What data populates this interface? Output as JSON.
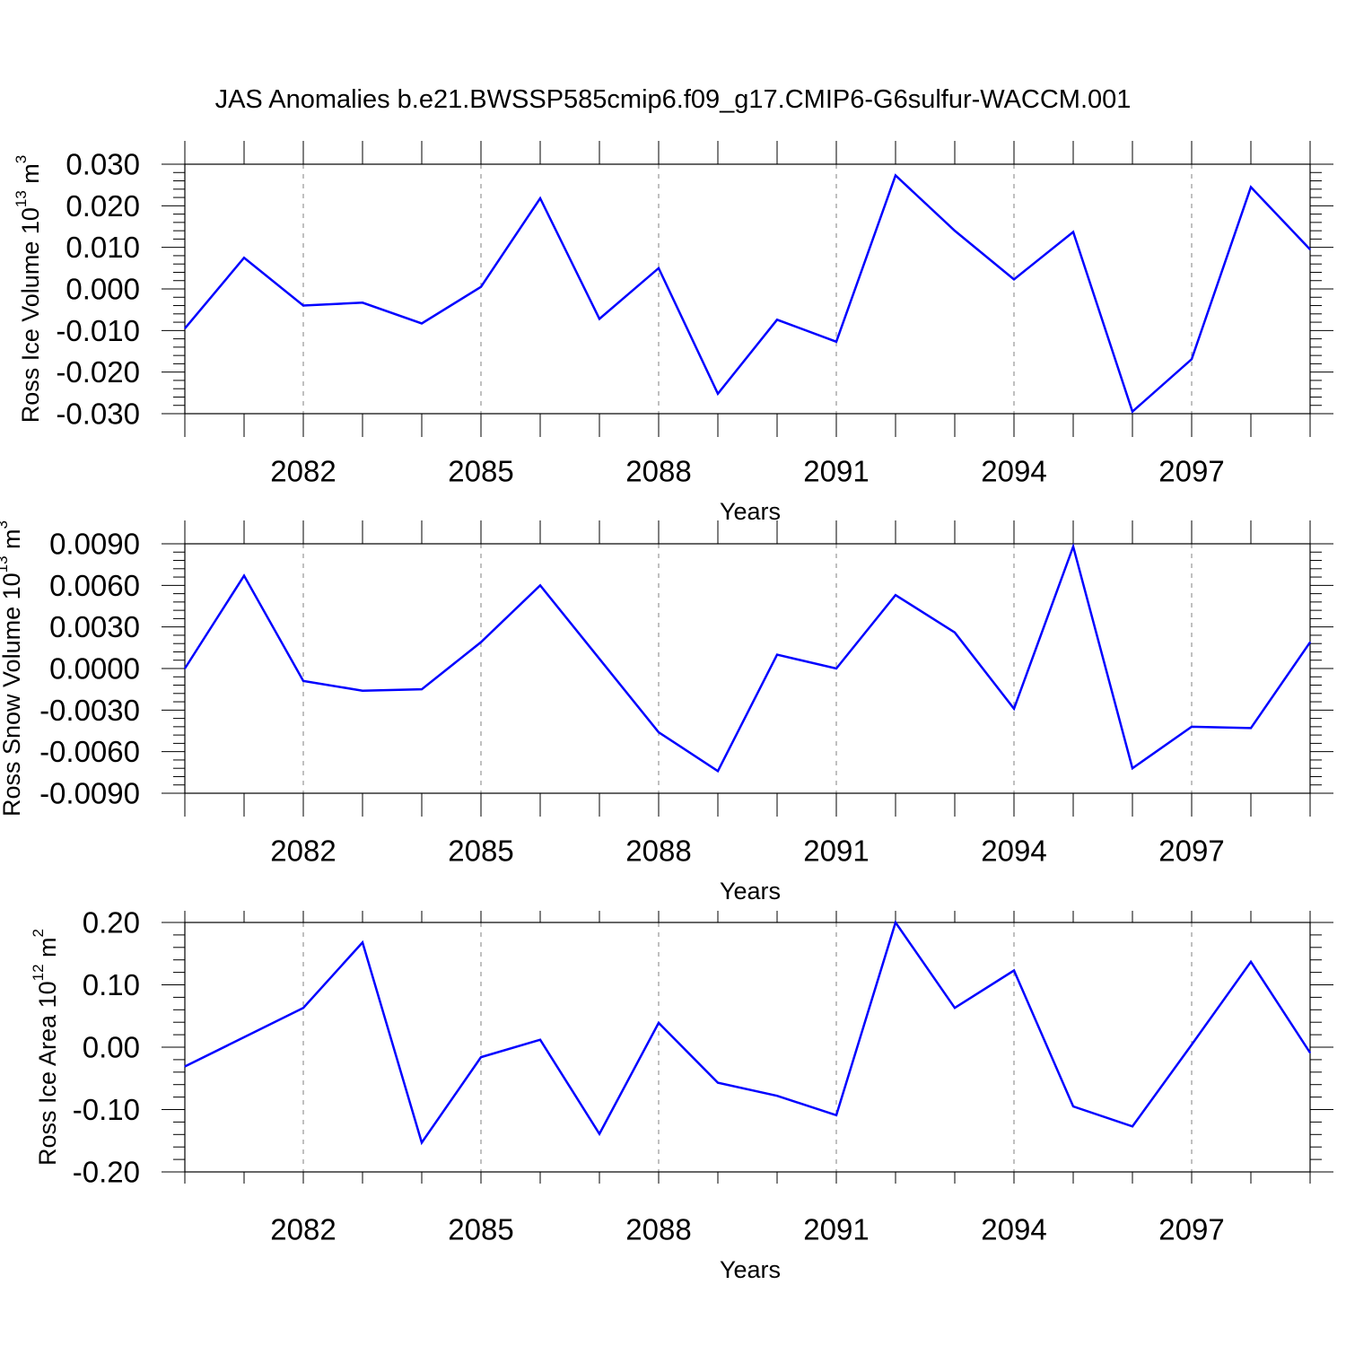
{
  "title": "JAS Anomalies b.e21.BWSSP585cmip6.f09_g17.CMIP6-G6sulfur-WACCM.001",
  "colors": {
    "line": "#0000ff",
    "axes": "#000000",
    "grid": "#808080"
  },
  "chart_data": [
    {
      "type": "line",
      "ylabel": {
        "text": "Ross Ice Volume 10",
        "exponent": "13",
        "unit": " m",
        "unit_exponent": "3"
      },
      "xlabel": "Years",
      "xlim": [
        2080,
        2099
      ],
      "ylim": [
        -0.03,
        0.03
      ],
      "x_ticks": [
        "2082",
        "2085",
        "2088",
        "2091",
        "2094",
        "2097"
      ],
      "y_ticks": [
        "-0.030",
        "-0.020",
        "-0.010",
        "0.000",
        "0.010",
        "0.020",
        "0.030"
      ],
      "grid": "x dashed",
      "series": [
        {
          "x": [
            2080,
            2081,
            2082,
            2083,
            2084,
            2085,
            2086,
            2087,
            2088,
            2089,
            2090,
            2091,
            2092,
            2093,
            2094,
            2095,
            2096,
            2097,
            2098,
            2099
          ],
          "values": [
            -0.0095,
            0.0075,
            -0.004,
            -0.0033,
            -0.0083,
            0.0005,
            0.0218,
            -0.0072,
            0.005,
            -0.0252,
            -0.0074,
            -0.0127,
            0.0273,
            0.014,
            0.0023,
            0.0137,
            -0.0295,
            -0.0169,
            0.0245,
            0.0095
          ]
        }
      ]
    },
    {
      "type": "line",
      "ylabel": {
        "text": "Ross Snow Volume 10",
        "exponent": "13",
        "unit": " m",
        "unit_exponent": "3"
      },
      "xlabel": "Years",
      "xlim": [
        2080,
        2099
      ],
      "ylim": [
        -0.009,
        0.009
      ],
      "x_ticks": [
        "2082",
        "2085",
        "2088",
        "2091",
        "2094",
        "2097"
      ],
      "y_ticks": [
        "-0.0090",
        "-0.0060",
        "-0.0030",
        "0.0000",
        "0.0030",
        "0.0060",
        "0.0090"
      ],
      "grid": "x dashed",
      "series": [
        {
          "x": [
            2080,
            2081,
            2082,
            2083,
            2084,
            2085,
            2086,
            2087,
            2088,
            2089,
            2090,
            2091,
            2092,
            2093,
            2094,
            2095,
            2096,
            2097,
            2098,
            2099
          ],
          "values": [
            0.0,
            0.0067,
            -0.0009,
            -0.0016,
            -0.0015,
            0.0019,
            0.006,
            0.0007,
            -0.0046,
            -0.0074,
            0.001,
            0.0,
            0.0053,
            0.0026,
            -0.0029,
            0.0088,
            -0.0072,
            -0.0042,
            -0.0043,
            0.0019
          ]
        }
      ]
    },
    {
      "type": "line",
      "ylabel": {
        "text": "Ross Ice Area 10",
        "exponent": "12",
        "unit": " m",
        "unit_exponent": "2"
      },
      "xlabel": "Years",
      "xlim": [
        2080,
        2099
      ],
      "ylim": [
        -0.2,
        0.2
      ],
      "x_ticks": [
        "2082",
        "2085",
        "2088",
        "2091",
        "2094",
        "2097"
      ],
      "y_ticks": [
        "-0.20",
        "-0.10",
        "0.00",
        "0.10",
        "0.20"
      ],
      "grid": "x dashed",
      "series": [
        {
          "x": [
            2080,
            2081,
            2082,
            2083,
            2084,
            2085,
            2086,
            2087,
            2088,
            2089,
            2090,
            2091,
            2092,
            2093,
            2094,
            2095,
            2096,
            2097,
            2098,
            2099
          ],
          "values": [
            -0.031,
            0.016,
            0.063,
            0.168,
            -0.153,
            -0.016,
            0.012,
            -0.139,
            0.039,
            -0.057,
            -0.078,
            -0.109,
            0.2,
            0.063,
            0.123,
            -0.095,
            -0.127,
            0.004,
            0.137,
            -0.009
          ]
        }
      ]
    }
  ]
}
